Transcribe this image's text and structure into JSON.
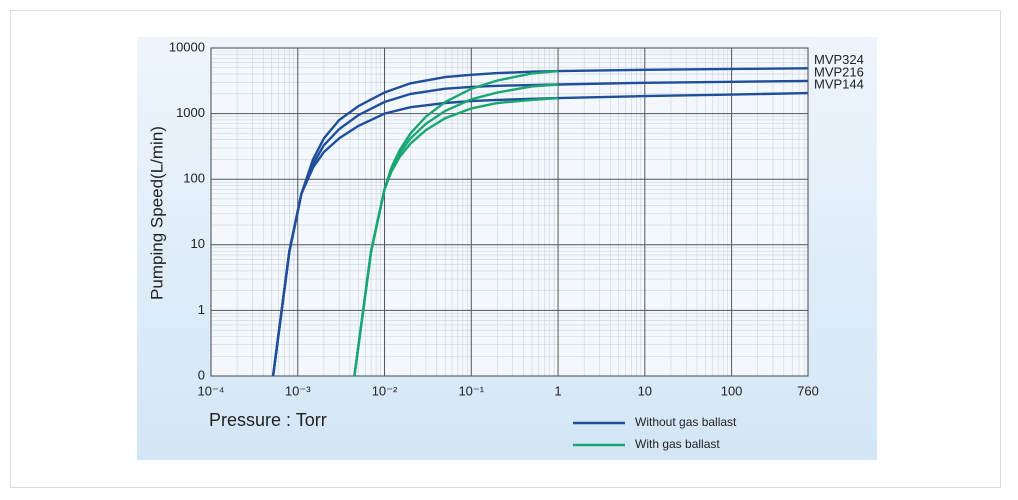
{
  "chart_data": {
    "type": "line",
    "xlabel": "Pressure : Torr",
    "ylabel": "Pumping Speed(L/min)",
    "xscale": "log",
    "yscale": "log",
    "grid": true,
    "xlim": [
      0.0001,
      760
    ],
    "xticks": [
      {
        "value": 0.0001,
        "label": "10⁻⁴"
      },
      {
        "value": 0.001,
        "label": "10⁻³"
      },
      {
        "value": 0.01,
        "label": "10⁻²"
      },
      {
        "value": 0.1,
        "label": "10⁻¹"
      },
      1,
      10,
      100,
      760
    ],
    "ylim": [
      0.1,
      10000
    ],
    "yticks": [
      {
        "value": 0.1,
        "label": "0"
      },
      1,
      10,
      100,
      1000,
      10000
    ],
    "series": [
      {
        "name": "Without gas ballast",
        "color": "#1f4e9a",
        "lines": [
          {
            "label": "MVP324",
            "x": [
              0.00052,
              0.0008,
              0.0011,
              0.0015,
              0.002,
              0.003,
              0.005,
              0.01,
              0.02,
              0.05,
              0.1,
              0.2,
              0.5,
              1,
              10,
              100,
              760
            ],
            "values": [
              0.1,
              8,
              60,
              200,
              420,
              800,
              1300,
              2100,
              2900,
              3600,
              3900,
              4150,
              4350,
              4450,
              4650,
              4800,
              4900
            ]
          },
          {
            "label": "MVP216",
            "x": [
              0.00052,
              0.0008,
              0.0011,
              0.0015,
              0.002,
              0.003,
              0.005,
              0.01,
              0.02,
              0.05,
              0.1,
              0.2,
              0.5,
              1,
              10,
              100,
              760
            ],
            "values": [
              0.1,
              8,
              60,
              170,
              330,
              580,
              950,
              1500,
              2000,
              2400,
              2550,
              2650,
              2720,
              2780,
              2950,
              3050,
              3150
            ]
          },
          {
            "label": "MVP144",
            "x": [
              0.00052,
              0.0008,
              0.0011,
              0.0015,
              0.002,
              0.003,
              0.005,
              0.01,
              0.02,
              0.05,
              0.1,
              0.2,
              0.5,
              1,
              10,
              100,
              760
            ],
            "values": [
              0.1,
              8,
              60,
              150,
              260,
              420,
              650,
              1000,
              1250,
              1450,
              1550,
              1620,
              1680,
              1720,
              1850,
              1950,
              2050
            ]
          }
        ]
      },
      {
        "name": "With gas ballast",
        "color": "#1aa672",
        "lines": [
          {
            "x": [
              0.0045,
              0.007,
              0.01,
              0.012,
              0.015,
              0.02,
              0.03,
              0.05,
              0.1,
              0.2,
              0.5,
              1
            ],
            "values": [
              0.1,
              8,
              70,
              150,
              280,
              500,
              900,
              1500,
              2400,
              3200,
              4100,
              4450
            ]
          },
          {
            "x": [
              0.0045,
              0.007,
              0.01,
              0.012,
              0.015,
              0.02,
              0.03,
              0.05,
              0.1,
              0.2,
              0.5,
              1
            ],
            "values": [
              0.1,
              8,
              70,
              140,
              250,
              420,
              700,
              1100,
              1650,
              2100,
              2600,
              2780
            ]
          },
          {
            "x": [
              0.0045,
              0.007,
              0.01,
              0.012,
              0.015,
              0.02,
              0.03,
              0.05,
              0.1,
              0.2,
              0.5,
              1
            ],
            "values": [
              0.1,
              8,
              70,
              130,
              220,
              350,
              560,
              850,
              1200,
              1450,
              1620,
              1720
            ]
          }
        ]
      }
    ]
  }
}
